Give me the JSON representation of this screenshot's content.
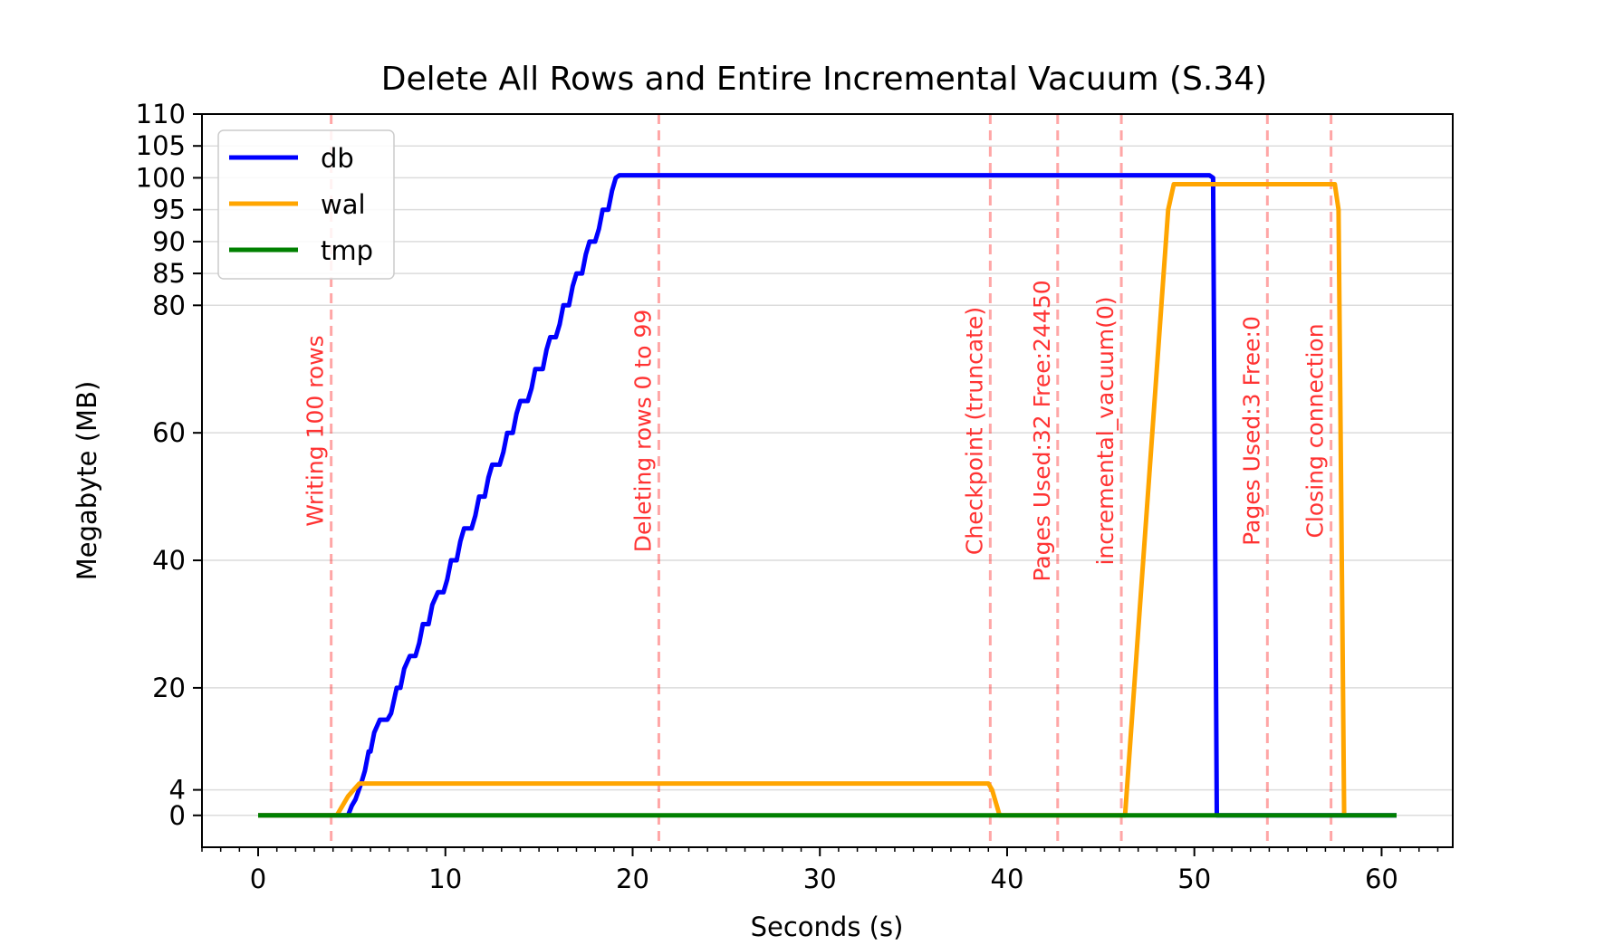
{
  "chart_data": {
    "type": "line",
    "title": "Delete All Rows and Entire Incremental Vacuum (S.34)",
    "xlabel": "Seconds (s)",
    "ylabel": "Megabyte (MB)",
    "xlim": [
      -3,
      63.8
    ],
    "ylim": [
      -5,
      110
    ],
    "x_ticks": [
      0,
      10,
      20,
      30,
      40,
      50,
      60
    ],
    "x_minor_step": 1,
    "y_ticks": [
      0,
      4,
      20,
      40,
      60,
      80,
      85,
      90,
      95,
      100,
      105,
      110
    ],
    "grid": "horizontal",
    "legend_position": "upper-left",
    "series": [
      {
        "name": "db",
        "color": "#0000ff",
        "points": [
          [
            0,
            0
          ],
          [
            4.8,
            0
          ],
          [
            5.0,
            1.5
          ],
          [
            5.2,
            2.5
          ],
          [
            5.5,
            5
          ],
          [
            5.7,
            7
          ],
          [
            5.9,
            10
          ],
          [
            6.0,
            10
          ],
          [
            6.2,
            13
          ],
          [
            6.5,
            15
          ],
          [
            6.9,
            15
          ],
          [
            7.1,
            16
          ],
          [
            7.4,
            20
          ],
          [
            7.6,
            20
          ],
          [
            7.8,
            23
          ],
          [
            8.1,
            25
          ],
          [
            8.4,
            25
          ],
          [
            8.6,
            27
          ],
          [
            8.8,
            30
          ],
          [
            9.1,
            30
          ],
          [
            9.3,
            33
          ],
          [
            9.6,
            35
          ],
          [
            9.9,
            35
          ],
          [
            10.1,
            37
          ],
          [
            10.3,
            40
          ],
          [
            10.6,
            40
          ],
          [
            10.8,
            43
          ],
          [
            11.0,
            45
          ],
          [
            11.4,
            45
          ],
          [
            11.6,
            47
          ],
          [
            11.8,
            50
          ],
          [
            12.1,
            50
          ],
          [
            12.3,
            53
          ],
          [
            12.5,
            55
          ],
          [
            12.9,
            55
          ],
          [
            13.1,
            57
          ],
          [
            13.3,
            60
          ],
          [
            13.6,
            60
          ],
          [
            13.8,
            63
          ],
          [
            14.0,
            65
          ],
          [
            14.4,
            65
          ],
          [
            14.6,
            67
          ],
          [
            14.8,
            70
          ],
          [
            15.2,
            70
          ],
          [
            15.4,
            73
          ],
          [
            15.6,
            75
          ],
          [
            15.9,
            75
          ],
          [
            16.1,
            77
          ],
          [
            16.3,
            80
          ],
          [
            16.6,
            80
          ],
          [
            16.8,
            83
          ],
          [
            17.0,
            85
          ],
          [
            17.3,
            85
          ],
          [
            17.5,
            88
          ],
          [
            17.7,
            90
          ],
          [
            18.0,
            90
          ],
          [
            18.2,
            92
          ],
          [
            18.4,
            95
          ],
          [
            18.7,
            95
          ],
          [
            18.9,
            98
          ],
          [
            19.1,
            100
          ],
          [
            19.3,
            100.4
          ],
          [
            50.8,
            100.4
          ],
          [
            51.0,
            100
          ],
          [
            51.1,
            50
          ],
          [
            51.2,
            0
          ],
          [
            60.8,
            0
          ]
        ]
      },
      {
        "name": "wal",
        "color": "#ffa500",
        "points": [
          [
            0,
            0
          ],
          [
            4.2,
            0
          ],
          [
            4.5,
            1.5
          ],
          [
            4.8,
            3
          ],
          [
            5.1,
            4
          ],
          [
            5.4,
            5
          ],
          [
            39.0,
            5
          ],
          [
            39.2,
            4
          ],
          [
            39.6,
            0
          ],
          [
            46.3,
            0
          ],
          [
            48.6,
            95
          ],
          [
            48.9,
            99
          ],
          [
            57.5,
            99
          ],
          [
            57.7,
            95
          ],
          [
            58.0,
            0
          ]
        ]
      },
      {
        "name": "tmp",
        "color": "#008000",
        "points": [
          [
            0,
            0
          ],
          [
            60.8,
            0
          ]
        ]
      }
    ],
    "annotations": [
      {
        "x": 3.9,
        "text": "Writing 100 rows"
      },
      {
        "x": 21.4,
        "text": "Deleting rows 0 to 99"
      },
      {
        "x": 39.1,
        "text": "Checkpoint (truncate)"
      },
      {
        "x": 42.7,
        "text": "Pages Used:32 Free:24450"
      },
      {
        "x": 46.1,
        "text": "incremental_vacuum(0)"
      },
      {
        "x": 53.9,
        "text": "Pages Used:3 Free:0"
      },
      {
        "x": 57.3,
        "text": "Closing connection"
      }
    ],
    "annotation_color": "#ff0000"
  }
}
